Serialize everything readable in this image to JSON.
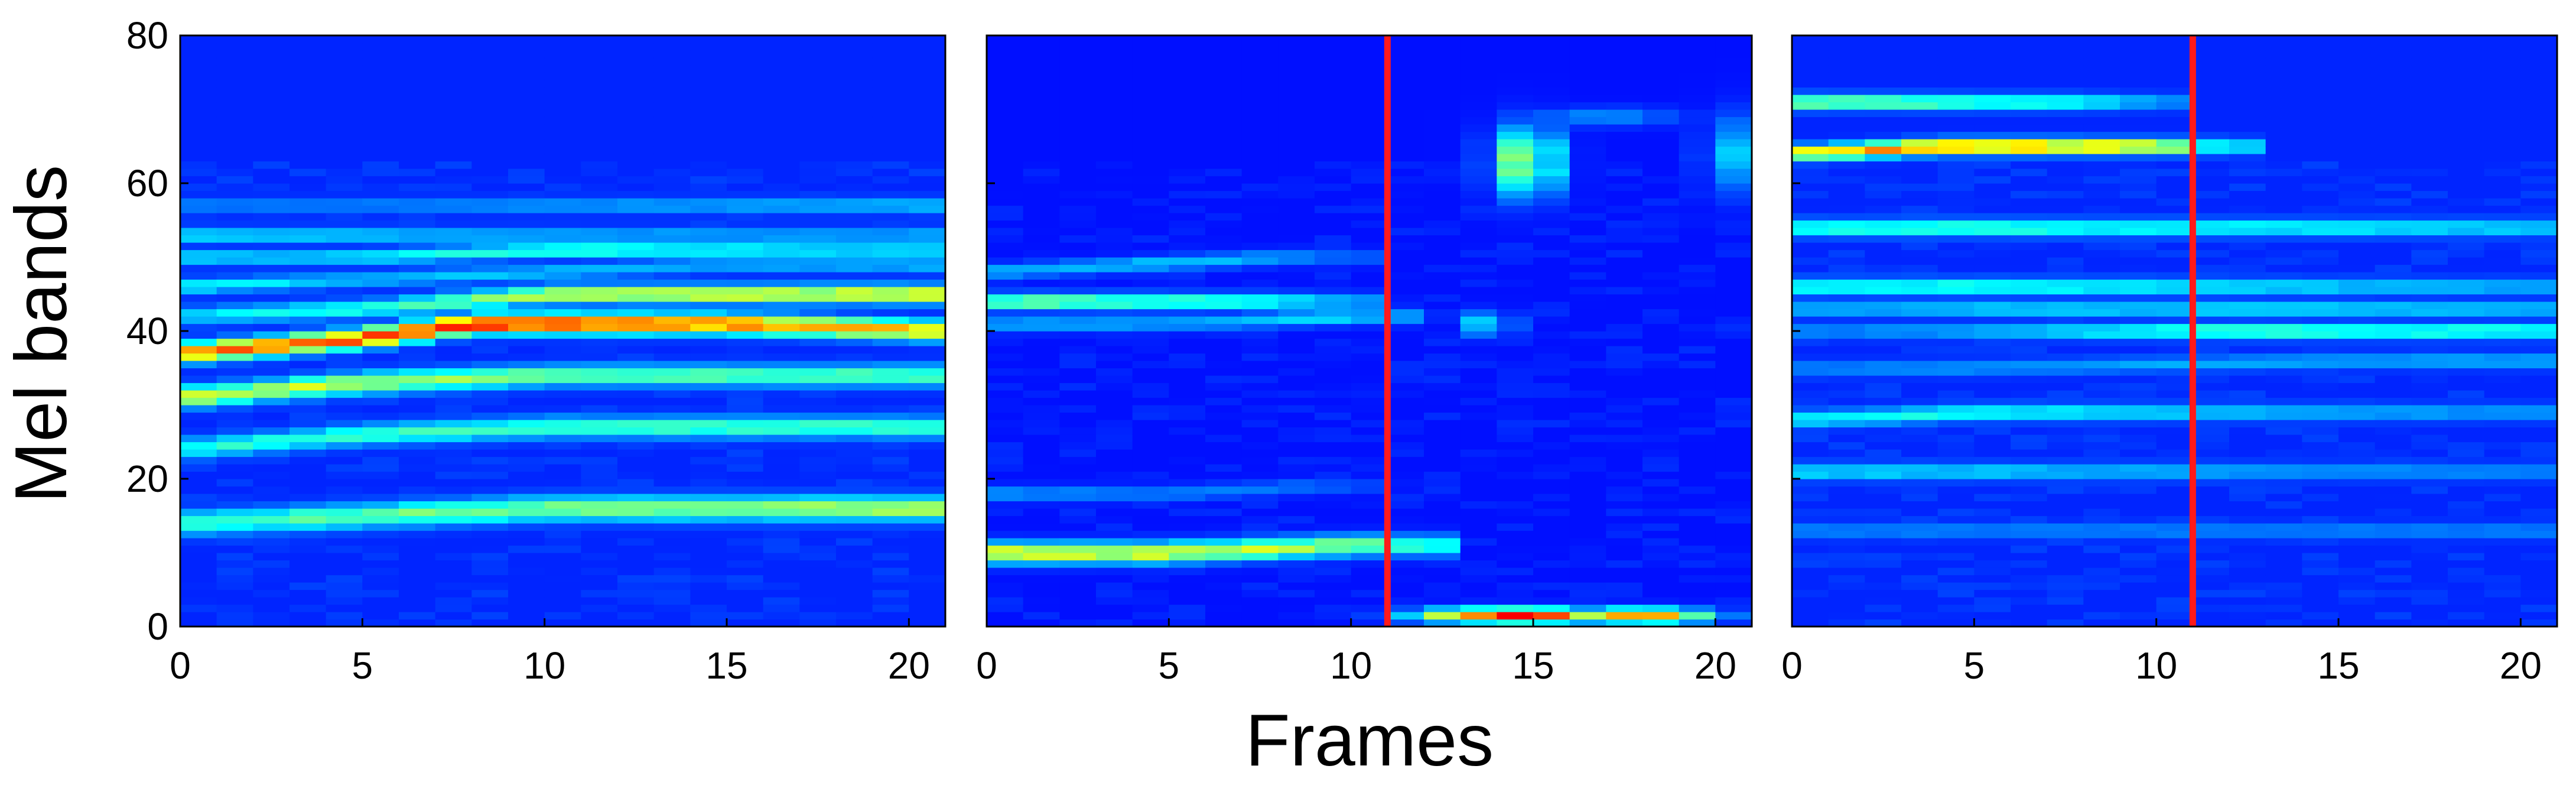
{
  "chart_data": {
    "type": "heatmap",
    "ylabel": "Mel bands",
    "xlabel": "Frames",
    "colormap": "jet",
    "xlim": [
      0,
      21
    ],
    "ylim": [
      0,
      80
    ],
    "x_ticks": [
      "0",
      "5",
      "10",
      "15",
      "20"
    ],
    "y_ticks": [
      "0",
      "20",
      "40",
      "60",
      "80"
    ],
    "marker_color": "#ff1a1a",
    "panels": [
      {
        "frames": 21,
        "bands": 80,
        "marker_frame": null,
        "background_level": 0.16,
        "tracks": [
          {
            "y": [
              14,
              15,
              16,
              16,
              16
            ],
            "x": [
              0,
              5,
              10,
              15,
              21
            ],
            "intensity": [
              0.42,
              0.48,
              0.5,
              0.52,
              0.55
            ],
            "width": 1.6
          },
          {
            "y": [
              24,
              26,
              27,
              27,
              27
            ],
            "x": [
              0,
              5,
              10,
              15,
              21
            ],
            "intensity": [
              0.4,
              0.42,
              0.44,
              0.44,
              0.44
            ],
            "width": 1.4
          },
          {
            "y": [
              31,
              33,
              34,
              34,
              34
            ],
            "x": [
              0,
              5,
              10,
              15,
              21
            ],
            "intensity": [
              0.58,
              0.56,
              0.48,
              0.46,
              0.46
            ],
            "width": 1.4
          },
          {
            "y": [
              37,
              39,
              41,
              41,
              40
            ],
            "x": [
              0,
              5,
              8,
              15,
              21
            ],
            "intensity": [
              0.72,
              0.82,
              0.88,
              0.76,
              0.66
            ],
            "width": 1.3
          },
          {
            "y": [
              42,
              43,
              45,
              45,
              45
            ],
            "x": [
              0,
              5,
              10,
              15,
              21
            ],
            "intensity": [
              0.35,
              0.4,
              0.56,
              0.6,
              0.62
            ],
            "width": 1.2
          },
          {
            "y": [
              46,
              47,
              48,
              49,
              49
            ],
            "x": [
              0,
              5,
              10,
              15,
              21
            ],
            "intensity": [
              0.38,
              0.32,
              0.32,
              0.3,
              0.32
            ],
            "width": 1.0
          },
          {
            "y": [
              50,
              50,
              51,
              51,
              51
            ],
            "x": [
              0,
              5,
              10,
              15,
              21
            ],
            "intensity": [
              0.34,
              0.36,
              0.44,
              0.4,
              0.36
            ],
            "width": 1.0
          },
          {
            "y": [
              53,
              53,
              53,
              53,
              53
            ],
            "x": [
              0,
              5,
              10,
              15,
              21
            ],
            "intensity": [
              0.36,
              0.34,
              0.3,
              0.3,
              0.3
            ],
            "width": 1.0
          },
          {
            "y": [
              57,
              57,
              57,
              57,
              57
            ],
            "x": [
              0,
              5,
              10,
              15,
              21
            ],
            "intensity": [
              0.26,
              0.26,
              0.28,
              0.3,
              0.32
            ],
            "width": 1.0
          }
        ],
        "blobs": []
      },
      {
        "frames": 21,
        "bands": 80,
        "marker_frame": 11,
        "background_level": 0.14,
        "tracks": [
          {
            "y": [
              10,
              10,
              11,
              11
            ],
            "x": [
              0,
              5,
              10,
              12
            ],
            "intensity": [
              0.62,
              0.6,
              0.52,
              0.4
            ],
            "width": 1.4
          },
          {
            "y": [
              18,
              18,
              19,
              19
            ],
            "x": [
              0,
              5,
              9,
              10
            ],
            "intensity": [
              0.28,
              0.26,
              0.24,
              0.2
            ],
            "width": 1.0
          },
          {
            "y": [
              41,
              41,
              42,
              42
            ],
            "x": [
              0,
              5,
              10,
              11
            ],
            "intensity": [
              0.3,
              0.3,
              0.36,
              0.3
            ],
            "width": 1.0
          },
          {
            "y": [
              44,
              44,
              44,
              44
            ],
            "x": [
              0,
              4,
              8,
              10
            ],
            "intensity": [
              0.5,
              0.48,
              0.4,
              0.3
            ],
            "width": 1.1
          },
          {
            "y": [
              48,
              49,
              50,
              50
            ],
            "x": [
              0,
              4,
              8,
              10
            ],
            "intensity": [
              0.3,
              0.32,
              0.3,
              0.22
            ],
            "width": 1.0
          }
        ],
        "blobs": [
          {
            "x": 14.5,
            "y": 1.5,
            "sx": 2.4,
            "sy": 1.0,
            "intensity": 0.92
          },
          {
            "x": 18.0,
            "y": 1.5,
            "sx": 1.8,
            "sy": 1.0,
            "intensity": 0.78
          },
          {
            "x": 14.8,
            "y": 63.0,
            "sx": 0.9,
            "sy": 4.5,
            "intensity": 0.52
          },
          {
            "x": 13.8,
            "y": 41.0,
            "sx": 0.6,
            "sy": 1.6,
            "intensity": 0.4
          },
          {
            "x": 20.3,
            "y": 64.0,
            "sx": 0.6,
            "sy": 5.0,
            "intensity": 0.34
          },
          {
            "x": 17.0,
            "y": 69.0,
            "sx": 2.0,
            "sy": 1.2,
            "intensity": 0.28
          }
        ]
      },
      {
        "frames": 21,
        "bands": 80,
        "marker_frame": 11,
        "background_level": 0.16,
        "tracks": [
          {
            "y": [
              13,
              13,
              13,
              13
            ],
            "x": [
              0,
              5,
              15,
              21
            ],
            "intensity": [
              0.26,
              0.26,
              0.26,
              0.26
            ],
            "width": 1.0
          },
          {
            "y": [
              21,
              21,
              21,
              21
            ],
            "x": [
              0,
              5,
              15,
              21
            ],
            "intensity": [
              0.36,
              0.34,
              0.28,
              0.26
            ],
            "width": 1.1
          },
          {
            "y": [
              28,
              29,
              29,
              29
            ],
            "x": [
              0,
              5,
              15,
              21
            ],
            "intensity": [
              0.38,
              0.4,
              0.3,
              0.28
            ],
            "width": 1.1
          },
          {
            "y": [
              35,
              35,
              36,
              36
            ],
            "x": [
              0,
              5,
              15,
              21
            ],
            "intensity": [
              0.26,
              0.28,
              0.3,
              0.3
            ],
            "width": 1.0
          },
          {
            "y": [
              40,
              40,
              40,
              40
            ],
            "x": [
              0,
              5,
              12,
              21
            ],
            "intensity": [
              0.26,
              0.3,
              0.46,
              0.42
            ],
            "width": 1.0
          },
          {
            "y": [
              43,
              43,
              43,
              43
            ],
            "x": [
              0,
              5,
              15,
              21
            ],
            "intensity": [
              0.3,
              0.34,
              0.36,
              0.32
            ],
            "width": 1.0
          },
          {
            "y": [
              46,
              46,
              46,
              46
            ],
            "x": [
              0,
              5,
              15,
              21
            ],
            "intensity": [
              0.4,
              0.42,
              0.34,
              0.3
            ],
            "width": 1.1
          },
          {
            "y": [
              54,
              54,
              54,
              54
            ],
            "x": [
              0,
              5,
              15,
              21
            ],
            "intensity": [
              0.42,
              0.44,
              0.38,
              0.34
            ],
            "width": 1.1
          },
          {
            "y": [
              64,
              65,
              65,
              65
            ],
            "x": [
              0,
              4,
              10,
              12
            ],
            "intensity": [
              0.62,
              0.78,
              0.66,
              0.36
            ],
            "width": 1.0
          },
          {
            "y": [
              71,
              71,
              71,
              71
            ],
            "x": [
              0,
              4,
              8,
              10
            ],
            "intensity": [
              0.52,
              0.48,
              0.42,
              0.28
            ],
            "width": 1.0
          }
        ],
        "blobs": []
      }
    ]
  }
}
